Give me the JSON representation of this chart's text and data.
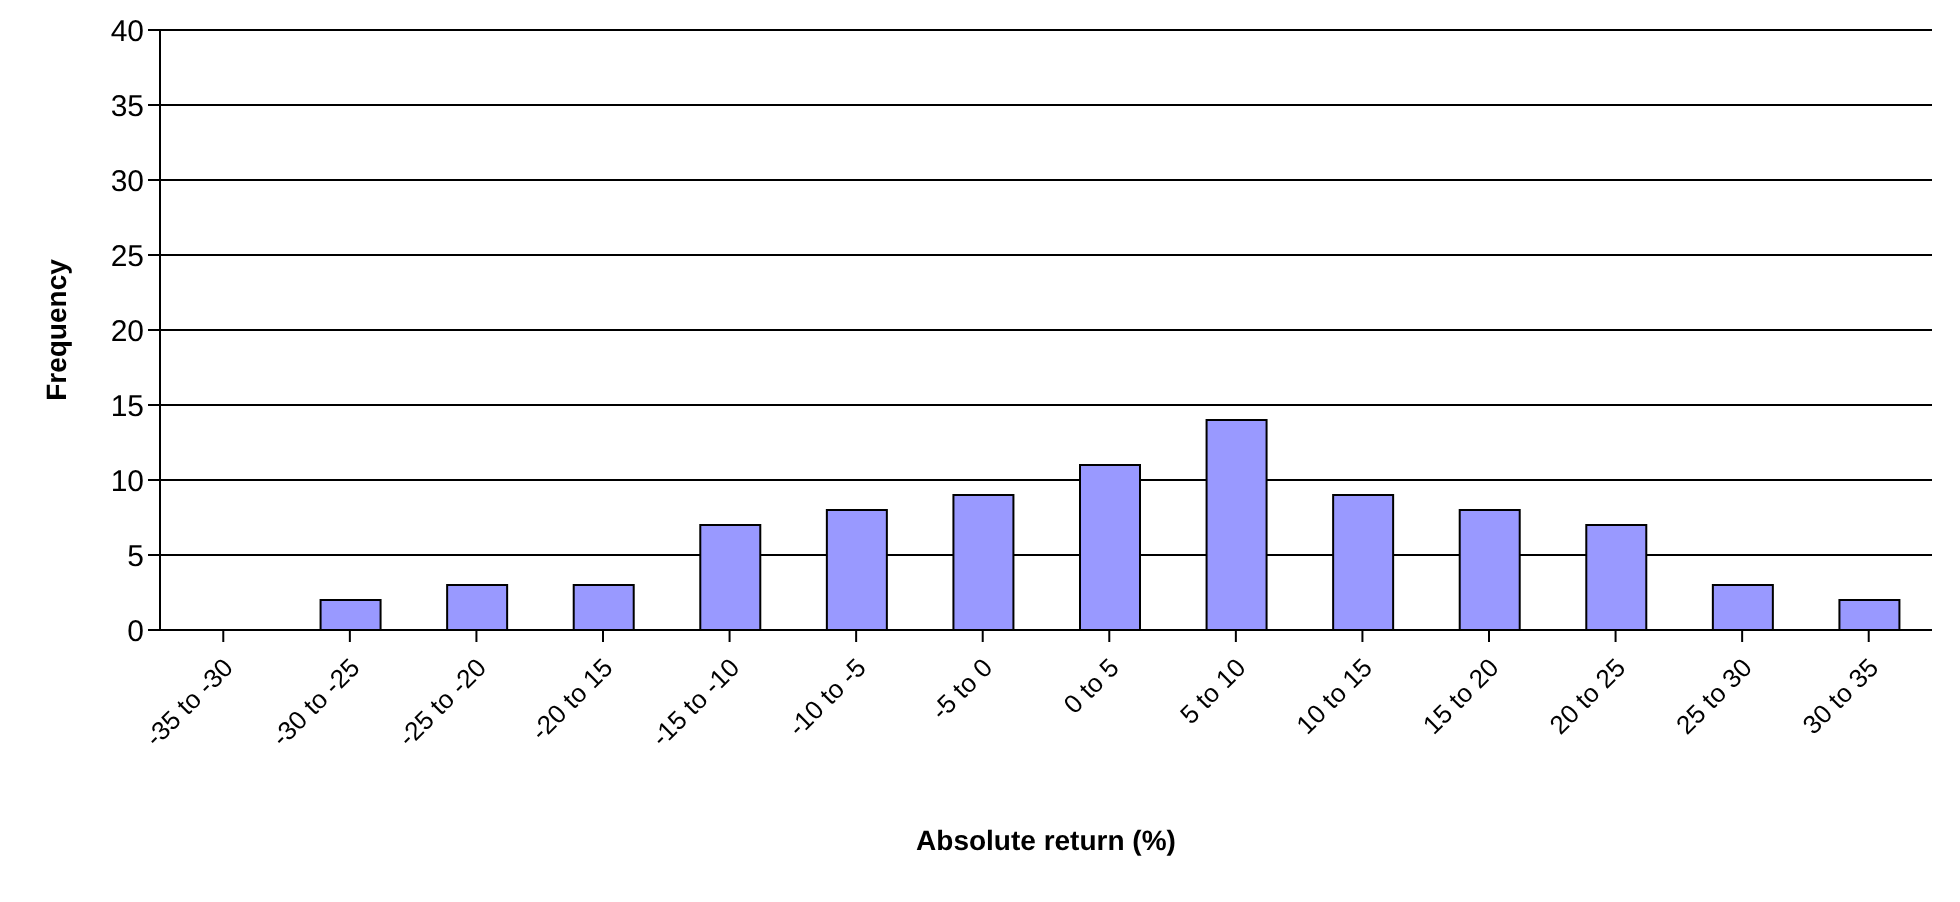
{
  "chart_data": {
    "type": "bar",
    "xlabel": "Absolute return (%)",
    "ylabel": "Frequency",
    "categories": [
      "-35 to -30",
      "-30 to -25",
      "-25 to -20",
      "-20 to 15",
      "-15 to -10",
      "-10 to -5",
      "-5 to 0",
      "0 to 5",
      "5 to 10",
      "10 to 15",
      "15 to 20",
      "20 to 25",
      "25 to 30",
      "30 to 35"
    ],
    "values": [
      0,
      2,
      3,
      3,
      7,
      8,
      9,
      11,
      14,
      9,
      8,
      7,
      3,
      2
    ],
    "color": "#9999ff",
    "ylim": [
      0,
      40
    ],
    "yticks": [
      0,
      5,
      10,
      15,
      20,
      25,
      30,
      35,
      40
    ],
    "grid": "y"
  }
}
